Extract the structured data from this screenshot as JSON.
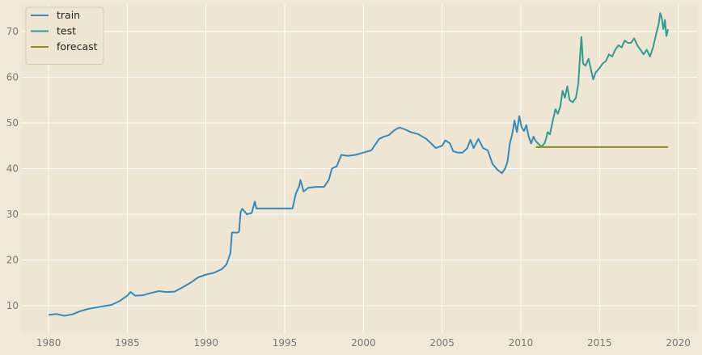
{
  "chart_data": {
    "type": "line",
    "title": "",
    "xlabel": "",
    "ylabel": "",
    "xlim": [
      1978.3,
      2021.2
    ],
    "ylim": [
      4.0,
      76.0
    ],
    "grid": true,
    "legend_position": "top-left",
    "x_ticks": [
      "1980",
      "1985",
      "1990",
      "1995",
      "2000",
      "2005",
      "2010",
      "2015",
      "2020"
    ],
    "y_ticks": [
      "10",
      "20",
      "30",
      "40",
      "50",
      "60",
      "70"
    ],
    "colors": {
      "background": "#eee6d3",
      "page": "#f1e8d8",
      "grid": "#ffffff",
      "train": "#348abd",
      "test": "#2e9c94",
      "forecast": "#8b8b1f"
    },
    "series": [
      {
        "name": "train",
        "points": [
          [
            1980.0,
            8.0
          ],
          [
            1980.5,
            8.2
          ],
          [
            1981.0,
            7.8
          ],
          [
            1981.5,
            8.1
          ],
          [
            1982.0,
            8.8
          ],
          [
            1982.5,
            9.3
          ],
          [
            1983.0,
            9.6
          ],
          [
            1983.5,
            9.9
          ],
          [
            1984.0,
            10.2
          ],
          [
            1984.5,
            11.0
          ],
          [
            1985.0,
            12.2
          ],
          [
            1985.2,
            13.0
          ],
          [
            1985.5,
            12.2
          ],
          [
            1986.0,
            12.3
          ],
          [
            1986.5,
            12.8
          ],
          [
            1987.0,
            13.2
          ],
          [
            1987.5,
            13.0
          ],
          [
            1988.0,
            13.1
          ],
          [
            1988.5,
            14.0
          ],
          [
            1989.0,
            15.0
          ],
          [
            1989.5,
            16.2
          ],
          [
            1990.0,
            16.8
          ],
          [
            1990.5,
            17.2
          ],
          [
            1991.0,
            18.0
          ],
          [
            1991.3,
            19.0
          ],
          [
            1991.55,
            21.5
          ],
          [
            1991.65,
            26.0
          ],
          [
            1992.0,
            26.0
          ],
          [
            1992.1,
            26.2
          ],
          [
            1992.2,
            30.5
          ],
          [
            1992.3,
            31.2
          ],
          [
            1992.6,
            30.0
          ],
          [
            1992.9,
            30.3
          ],
          [
            1993.1,
            32.8
          ],
          [
            1993.2,
            31.3
          ],
          [
            1994.0,
            31.3
          ],
          [
            1995.0,
            31.3
          ],
          [
            1995.5,
            31.3
          ],
          [
            1995.7,
            34.5
          ],
          [
            1995.9,
            36.0
          ],
          [
            1996.0,
            37.5
          ],
          [
            1996.2,
            35.0
          ],
          [
            1996.5,
            35.8
          ],
          [
            1997.0,
            36.0
          ],
          [
            1997.5,
            36.0
          ],
          [
            1997.8,
            37.5
          ],
          [
            1998.0,
            40.0
          ],
          [
            1998.3,
            40.5
          ],
          [
            1998.6,
            43.0
          ],
          [
            1999.0,
            42.8
          ],
          [
            1999.5,
            43.0
          ],
          [
            2000.0,
            43.5
          ],
          [
            2000.3,
            43.8
          ],
          [
            2000.5,
            44.0
          ],
          [
            2000.8,
            45.5
          ],
          [
            2001.0,
            46.5
          ],
          [
            2001.3,
            47.0
          ],
          [
            2001.6,
            47.3
          ],
          [
            2002.0,
            48.5
          ],
          [
            2002.3,
            49.0
          ],
          [
            2002.7,
            48.5
          ],
          [
            2003.0,
            48.0
          ],
          [
            2003.5,
            47.5
          ],
          [
            2004.0,
            46.5
          ],
          [
            2004.3,
            45.5
          ],
          [
            2004.6,
            44.5
          ],
          [
            2005.0,
            45.0
          ],
          [
            2005.2,
            46.2
          ],
          [
            2005.5,
            45.5
          ],
          [
            2005.7,
            43.8
          ],
          [
            2006.0,
            43.5
          ],
          [
            2006.3,
            43.5
          ],
          [
            2006.6,
            44.5
          ],
          [
            2006.8,
            46.3
          ],
          [
            2007.0,
            44.5
          ],
          [
            2007.3,
            46.5
          ],
          [
            2007.6,
            44.5
          ],
          [
            2007.9,
            44.0
          ],
          [
            2008.2,
            41.0
          ],
          [
            2008.5,
            39.8
          ],
          [
            2008.8,
            39.0
          ],
          [
            2009.0,
            40.0
          ],
          [
            2009.15,
            41.5
          ],
          [
            2009.3,
            45.5
          ],
          [
            2009.45,
            47.5
          ],
          [
            2009.6,
            50.5
          ],
          [
            2009.75,
            48.0
          ],
          [
            2009.9,
            51.5
          ],
          [
            2010.05,
            49.0
          ],
          [
            2010.2,
            48.2
          ],
          [
            2010.35,
            49.5
          ],
          [
            2010.5,
            47.0
          ],
          [
            2010.65,
            45.5
          ],
          [
            2010.8,
            47.0
          ],
          [
            2010.95,
            46.0
          ]
        ]
      },
      {
        "name": "test",
        "points": [
          [
            2010.95,
            46.0
          ],
          [
            2011.1,
            45.5
          ],
          [
            2011.3,
            44.8
          ],
          [
            2011.5,
            45.5
          ],
          [
            2011.6,
            46.5
          ],
          [
            2011.7,
            48.0
          ],
          [
            2011.85,
            47.5
          ],
          [
            2012.0,
            50.0
          ],
          [
            2012.2,
            53.0
          ],
          [
            2012.35,
            52.0
          ],
          [
            2012.5,
            53.5
          ],
          [
            2012.65,
            57.0
          ],
          [
            2012.8,
            55.5
          ],
          [
            2012.95,
            58.0
          ],
          [
            2013.1,
            55.0
          ],
          [
            2013.3,
            54.5
          ],
          [
            2013.5,
            55.5
          ],
          [
            2013.65,
            58.5
          ],
          [
            2013.75,
            64.0
          ],
          [
            2013.85,
            68.8
          ],
          [
            2013.95,
            63.0
          ],
          [
            2014.1,
            62.5
          ],
          [
            2014.3,
            64.0
          ],
          [
            2014.5,
            61.0
          ],
          [
            2014.6,
            59.5
          ],
          [
            2014.75,
            61.0
          ],
          [
            2015.0,
            62.0
          ],
          [
            2015.2,
            63.0
          ],
          [
            2015.4,
            63.5
          ],
          [
            2015.6,
            65.0
          ],
          [
            2015.8,
            64.5
          ],
          [
            2016.0,
            66.0
          ],
          [
            2016.2,
            67.0
          ],
          [
            2016.4,
            66.5
          ],
          [
            2016.6,
            68.0
          ],
          [
            2016.8,
            67.5
          ],
          [
            2017.0,
            67.5
          ],
          [
            2017.2,
            68.5
          ],
          [
            2017.4,
            67.0
          ],
          [
            2017.6,
            66.0
          ],
          [
            2017.8,
            65.0
          ],
          [
            2018.0,
            66.0
          ],
          [
            2018.2,
            64.5
          ],
          [
            2018.4,
            66.5
          ],
          [
            2018.6,
            69.5
          ],
          [
            2018.75,
            71.5
          ],
          [
            2018.85,
            74.0
          ],
          [
            2018.95,
            73.0
          ],
          [
            2019.05,
            70.5
          ],
          [
            2019.15,
            72.5
          ],
          [
            2019.25,
            69.0
          ],
          [
            2019.35,
            70.5
          ]
        ]
      },
      {
        "name": "forecast",
        "points": [
          [
            2010.95,
            44.7
          ],
          [
            2019.35,
            44.7
          ]
        ]
      }
    ]
  }
}
